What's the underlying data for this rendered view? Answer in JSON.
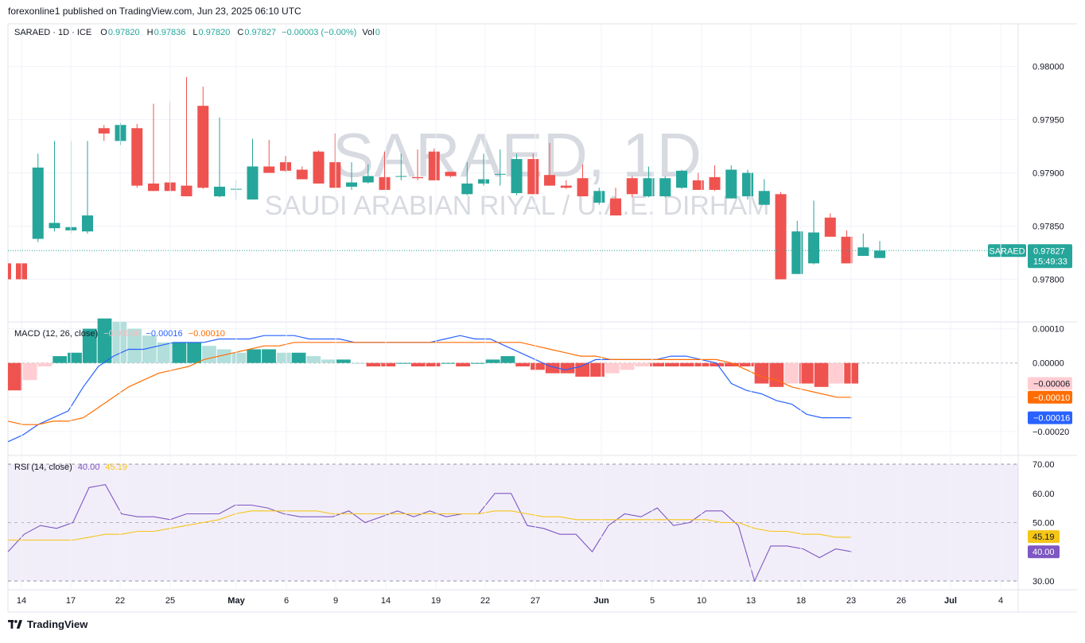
{
  "header": {
    "published": "forexonline1 published on TradingView.com, Jun 23, 2025 06:10 UTC"
  },
  "legend": {
    "symbol": "SARAED · 1D · ICE",
    "o_label": "O",
    "o": "0.97820",
    "h_label": "H",
    "h": "0.97836",
    "l_label": "L",
    "l": "0.97820",
    "c_label": "C",
    "c": "0.97827",
    "change": "−0.00003 (−0.00%)",
    "vol_label": "Vol",
    "vol": "0"
  },
  "watermark": {
    "title": "SARAED, 1D",
    "subtitle": "SAUDI ARABIAN RIYAL / U.A.E. DIRHAM"
  },
  "price_tag": {
    "symbol": "SARAED",
    "price": "0.97827",
    "countdown": "15:49:33"
  },
  "macd_legend": {
    "label": "MACD (12, 26, close)",
    "hist": "−0.00006",
    "macd": "−0.00016",
    "signal": "−0.00010"
  },
  "rsi_legend": {
    "label": "RSI (14, close)",
    "rsi": "40.00",
    "ma": "45.19"
  },
  "brand": {
    "name": "TradingView"
  },
  "colors": {
    "up": "#26a69a",
    "down": "#ef5350",
    "macd": "#2962ff",
    "signal": "#ff6d00",
    "rsi": "#7e57c2",
    "rsi_ma": "#f5c518"
  },
  "chart_data": [
    {
      "type": "candlestick",
      "price_axis": [
        "0.98000",
        "0.97950",
        "0.97900",
        "0.97850",
        "0.97800"
      ],
      "ylim": [
        0.9776,
        0.9804
      ],
      "x_labels": [
        "14",
        "17",
        "22",
        "25",
        "May",
        "6",
        "9",
        "14",
        "19",
        "22",
        "27",
        "Jun",
        "5",
        "10",
        "13",
        "18",
        "23",
        "26",
        "Jul",
        "4"
      ],
      "candles": [
        {
          "o": 0.97815,
          "h": 0.9783,
          "l": 0.9779,
          "c": 0.978
        },
        {
          "o": 0.97838,
          "h": 0.97918,
          "l": 0.97835,
          "c": 0.97905
        },
        {
          "o": 0.97848,
          "h": 0.9793,
          "l": 0.97845,
          "c": 0.97853
        },
        {
          "o": 0.97846,
          "h": 0.9793,
          "l": 0.97843,
          "c": 0.97849
        },
        {
          "o": 0.97845,
          "h": 0.9793,
          "l": 0.97843,
          "c": 0.9786
        },
        {
          "o": 0.97942,
          "h": 0.97945,
          "l": 0.9793,
          "c": 0.97937
        },
        {
          "o": 0.9793,
          "h": 0.97947,
          "l": 0.97926,
          "c": 0.97945
        },
        {
          "o": 0.97942,
          "h": 0.97946,
          "l": 0.97886,
          "c": 0.97888
        },
        {
          "o": 0.9789,
          "h": 0.97965,
          "l": 0.97883,
          "c": 0.97883
        },
        {
          "o": 0.97891,
          "h": 0.97967,
          "l": 0.97883,
          "c": 0.97883
        },
        {
          "o": 0.97888,
          "h": 0.9799,
          "l": 0.97878,
          "c": 0.97878
        },
        {
          "o": 0.97963,
          "h": 0.97981,
          "l": 0.97885,
          "c": 0.97886
        },
        {
          "o": 0.97878,
          "h": 0.97952,
          "l": 0.97877,
          "c": 0.97887
        },
        {
          "o": 0.97885,
          "h": 0.97893,
          "l": 0.97875,
          "c": 0.97885
        },
        {
          "o": 0.97875,
          "h": 0.97932,
          "l": 0.97875,
          "c": 0.97906
        },
        {
          "o": 0.97906,
          "h": 0.97931,
          "l": 0.979,
          "c": 0.979
        },
        {
          "o": 0.9791,
          "h": 0.97916,
          "l": 0.97901,
          "c": 0.97902
        },
        {
          "o": 0.97903,
          "h": 0.97906,
          "l": 0.97894,
          "c": 0.97894
        },
        {
          "o": 0.9792,
          "h": 0.97921,
          "l": 0.9789,
          "c": 0.9789
        },
        {
          "o": 0.9791,
          "h": 0.97937,
          "l": 0.97886,
          "c": 0.97886
        },
        {
          "o": 0.97887,
          "h": 0.9791,
          "l": 0.97884,
          "c": 0.97891
        },
        {
          "o": 0.97891,
          "h": 0.97908,
          "l": 0.9789,
          "c": 0.97897
        },
        {
          "o": 0.97896,
          "h": 0.9792,
          "l": 0.97884,
          "c": 0.97884
        },
        {
          "o": 0.97897,
          "h": 0.97918,
          "l": 0.97893,
          "c": 0.97897
        },
        {
          "o": 0.97896,
          "h": 0.97922,
          "l": 0.97893,
          "c": 0.97895
        },
        {
          "o": 0.9792,
          "h": 0.97923,
          "l": 0.97893,
          "c": 0.97893
        },
        {
          "o": 0.97901,
          "h": 0.97901,
          "l": 0.97896,
          "c": 0.97897
        },
        {
          "o": 0.9788,
          "h": 0.9791,
          "l": 0.97879,
          "c": 0.9789
        },
        {
          "o": 0.9789,
          "h": 0.97918,
          "l": 0.97888,
          "c": 0.97894
        },
        {
          "o": 0.97899,
          "h": 0.97922,
          "l": 0.97888,
          "c": 0.97899
        },
        {
          "o": 0.97881,
          "h": 0.97918,
          "l": 0.97879,
          "c": 0.97913
        },
        {
          "o": 0.97913,
          "h": 0.97918,
          "l": 0.9788,
          "c": 0.9788
        },
        {
          "o": 0.97898,
          "h": 0.97928,
          "l": 0.97888,
          "c": 0.97888
        },
        {
          "o": 0.97888,
          "h": 0.97893,
          "l": 0.97885,
          "c": 0.97886
        },
        {
          "o": 0.97895,
          "h": 0.97908,
          "l": 0.97878,
          "c": 0.97878
        },
        {
          "o": 0.97872,
          "h": 0.97886,
          "l": 0.9787,
          "c": 0.97883
        },
        {
          "o": 0.97876,
          "h": 0.97886,
          "l": 0.9786,
          "c": 0.9786
        },
        {
          "o": 0.97895,
          "h": 0.97897,
          "l": 0.97877,
          "c": 0.9788
        },
        {
          "o": 0.97878,
          "h": 0.97906,
          "l": 0.97877,
          "c": 0.97895
        },
        {
          "o": 0.97878,
          "h": 0.97897,
          "l": 0.97877,
          "c": 0.97895
        },
        {
          "o": 0.97886,
          "h": 0.97903,
          "l": 0.97885,
          "c": 0.97902
        },
        {
          "o": 0.97893,
          "h": 0.979,
          "l": 0.97884,
          "c": 0.97884
        },
        {
          "o": 0.97896,
          "h": 0.97907,
          "l": 0.97883,
          "c": 0.97884
        },
        {
          "o": 0.97876,
          "h": 0.97907,
          "l": 0.97876,
          "c": 0.97903
        },
        {
          "o": 0.97878,
          "h": 0.97903,
          "l": 0.97875,
          "c": 0.979
        },
        {
          "o": 0.9787,
          "h": 0.97894,
          "l": 0.9787,
          "c": 0.97883
        },
        {
          "o": 0.9788,
          "h": 0.97882,
          "l": 0.978,
          "c": 0.978
        },
        {
          "o": 0.97805,
          "h": 0.97855,
          "l": 0.97805,
          "c": 0.97845
        },
        {
          "o": 0.97815,
          "h": 0.97874,
          "l": 0.97814,
          "c": 0.97844
        },
        {
          "o": 0.97858,
          "h": 0.97862,
          "l": 0.9784,
          "c": 0.9784
        },
        {
          "o": 0.9784,
          "h": 0.97846,
          "l": 0.97815,
          "c": 0.97815
        },
        {
          "o": 0.97822,
          "h": 0.97843,
          "l": 0.97822,
          "c": 0.9783
        },
        {
          "o": 0.9782,
          "h": 0.97836,
          "l": 0.9782,
          "c": 0.97827
        }
      ]
    },
    {
      "type": "bar+line",
      "name": "MACD (12, 26, close)",
      "price_axis": [
        "0.00010",
        "0.00000",
        "−0.00010",
        "−0.00020"
      ],
      "ylim": [
        -0.00027,
        0.00012
      ],
      "histogram": [
        -8e-05,
        -5e-05,
        -1e-05,
        2e-05,
        3e-05,
        0.0001,
        0.00013,
        0.00012,
        0.0001,
        8e-05,
        6e-05,
        6e-05,
        6e-05,
        5e-05,
        4e-05,
        3e-05,
        4e-05,
        4e-05,
        3e-05,
        3e-05,
        2e-05,
        1e-05,
        1e-05,
        0.0,
        -1e-05,
        -1e-05,
        0.0,
        -1e-05,
        -1e-05,
        0.0,
        -1e-05,
        0.0,
        1e-05,
        2e-05,
        -1e-05,
        -2e-05,
        -3e-05,
        -3e-05,
        -4e-05,
        -4e-05,
        -3e-05,
        -2e-05,
        -1e-05,
        -1e-05,
        -1e-05,
        -1e-05,
        -1e-05,
        -1e-05,
        -1e-05,
        -1e-05,
        -6e-05,
        -7e-05,
        -6e-05,
        -6e-05,
        -7e-05,
        -6e-05,
        -6e-05
      ],
      "series": [
        {
          "values": [
            -0.00023,
            -0.00021,
            -0.00018,
            -0.00016,
            -0.00014,
            -7e-05,
            -1e-05,
            2e-05,
            4e-05,
            4e-05,
            5e-05,
            6e-05,
            6e-05,
            6e-05,
            7e-05,
            7e-05,
            7e-05,
            8e-05,
            8e-05,
            8e-05,
            7e-05,
            7e-05,
            7e-05,
            6e-05,
            6e-05,
            6e-05,
            6e-05,
            6e-05,
            6e-05,
            7e-05,
            8e-05,
            7e-05,
            7e-05,
            5e-05,
            3e-05,
            1e-05,
            -1e-05,
            -2e-05,
            -1e-05,
            1e-05,
            1e-05,
            1e-05,
            1e-05,
            1e-05,
            2e-05,
            2e-05,
            1e-05,
            0.0,
            -6e-05,
            -8e-05,
            -9e-05,
            -0.00011,
            -0.00012,
            -0.00015,
            -0.00016,
            -0.00016,
            -0.00016
          ]
        },
        {
          "values": [
            -0.00017,
            -0.00018,
            -0.00018,
            -0.00017,
            -0.00017,
            -0.00016,
            -0.00013,
            -0.0001,
            -7e-05,
            -5e-05,
            -3e-05,
            -2e-05,
            -1e-05,
            1e-05,
            2e-05,
            3e-05,
            4e-05,
            5e-05,
            5e-05,
            6e-05,
            6e-05,
            6e-05,
            6e-05,
            6e-05,
            6e-05,
            6e-05,
            6e-05,
            6e-05,
            6e-05,
            6e-05,
            6e-05,
            6e-05,
            6e-05,
            6e-05,
            6e-05,
            5e-05,
            4e-05,
            3e-05,
            2e-05,
            2e-05,
            1e-05,
            1e-05,
            1e-05,
            1e-05,
            1e-05,
            1e-05,
            1e-05,
            1e-05,
            0.0,
            -2e-05,
            -4e-05,
            -5e-05,
            -7e-05,
            -8e-05,
            -9e-05,
            -0.0001,
            -0.0001
          ]
        }
      ]
    },
    {
      "type": "line",
      "name": "RSI (14, close)",
      "price_axis": [
        "70.00",
        "60.00",
        "50.00",
        "30.00"
      ],
      "ylim": [
        27,
        73
      ],
      "bands": [
        30,
        50,
        70
      ],
      "series": [
        {
          "values": [
            40,
            46,
            49,
            48,
            50,
            62,
            63,
            53,
            52,
            52,
            51,
            53,
            53,
            53,
            56,
            56,
            55,
            53,
            52,
            52,
            52,
            54,
            50,
            52,
            54,
            52,
            54,
            52,
            53,
            53,
            60,
            60,
            49,
            48,
            46,
            46,
            40,
            49,
            53,
            52,
            55,
            49,
            50,
            54,
            54,
            49,
            30,
            42,
            42,
            41,
            38,
            41,
            40
          ]
        },
        {
          "values": [
            44,
            44,
            44,
            44,
            44,
            45,
            46,
            46,
            47,
            47,
            48,
            49,
            50,
            51,
            53,
            54,
            54,
            54,
            54,
            54,
            53,
            53,
            53,
            53,
            53,
            53,
            53,
            53,
            53,
            53,
            54,
            54,
            53,
            52,
            52,
            51,
            51,
            51,
            51,
            51,
            51,
            51,
            51,
            51,
            50,
            50,
            48,
            47,
            47,
            46,
            46,
            45,
            45
          ]
        }
      ]
    }
  ]
}
